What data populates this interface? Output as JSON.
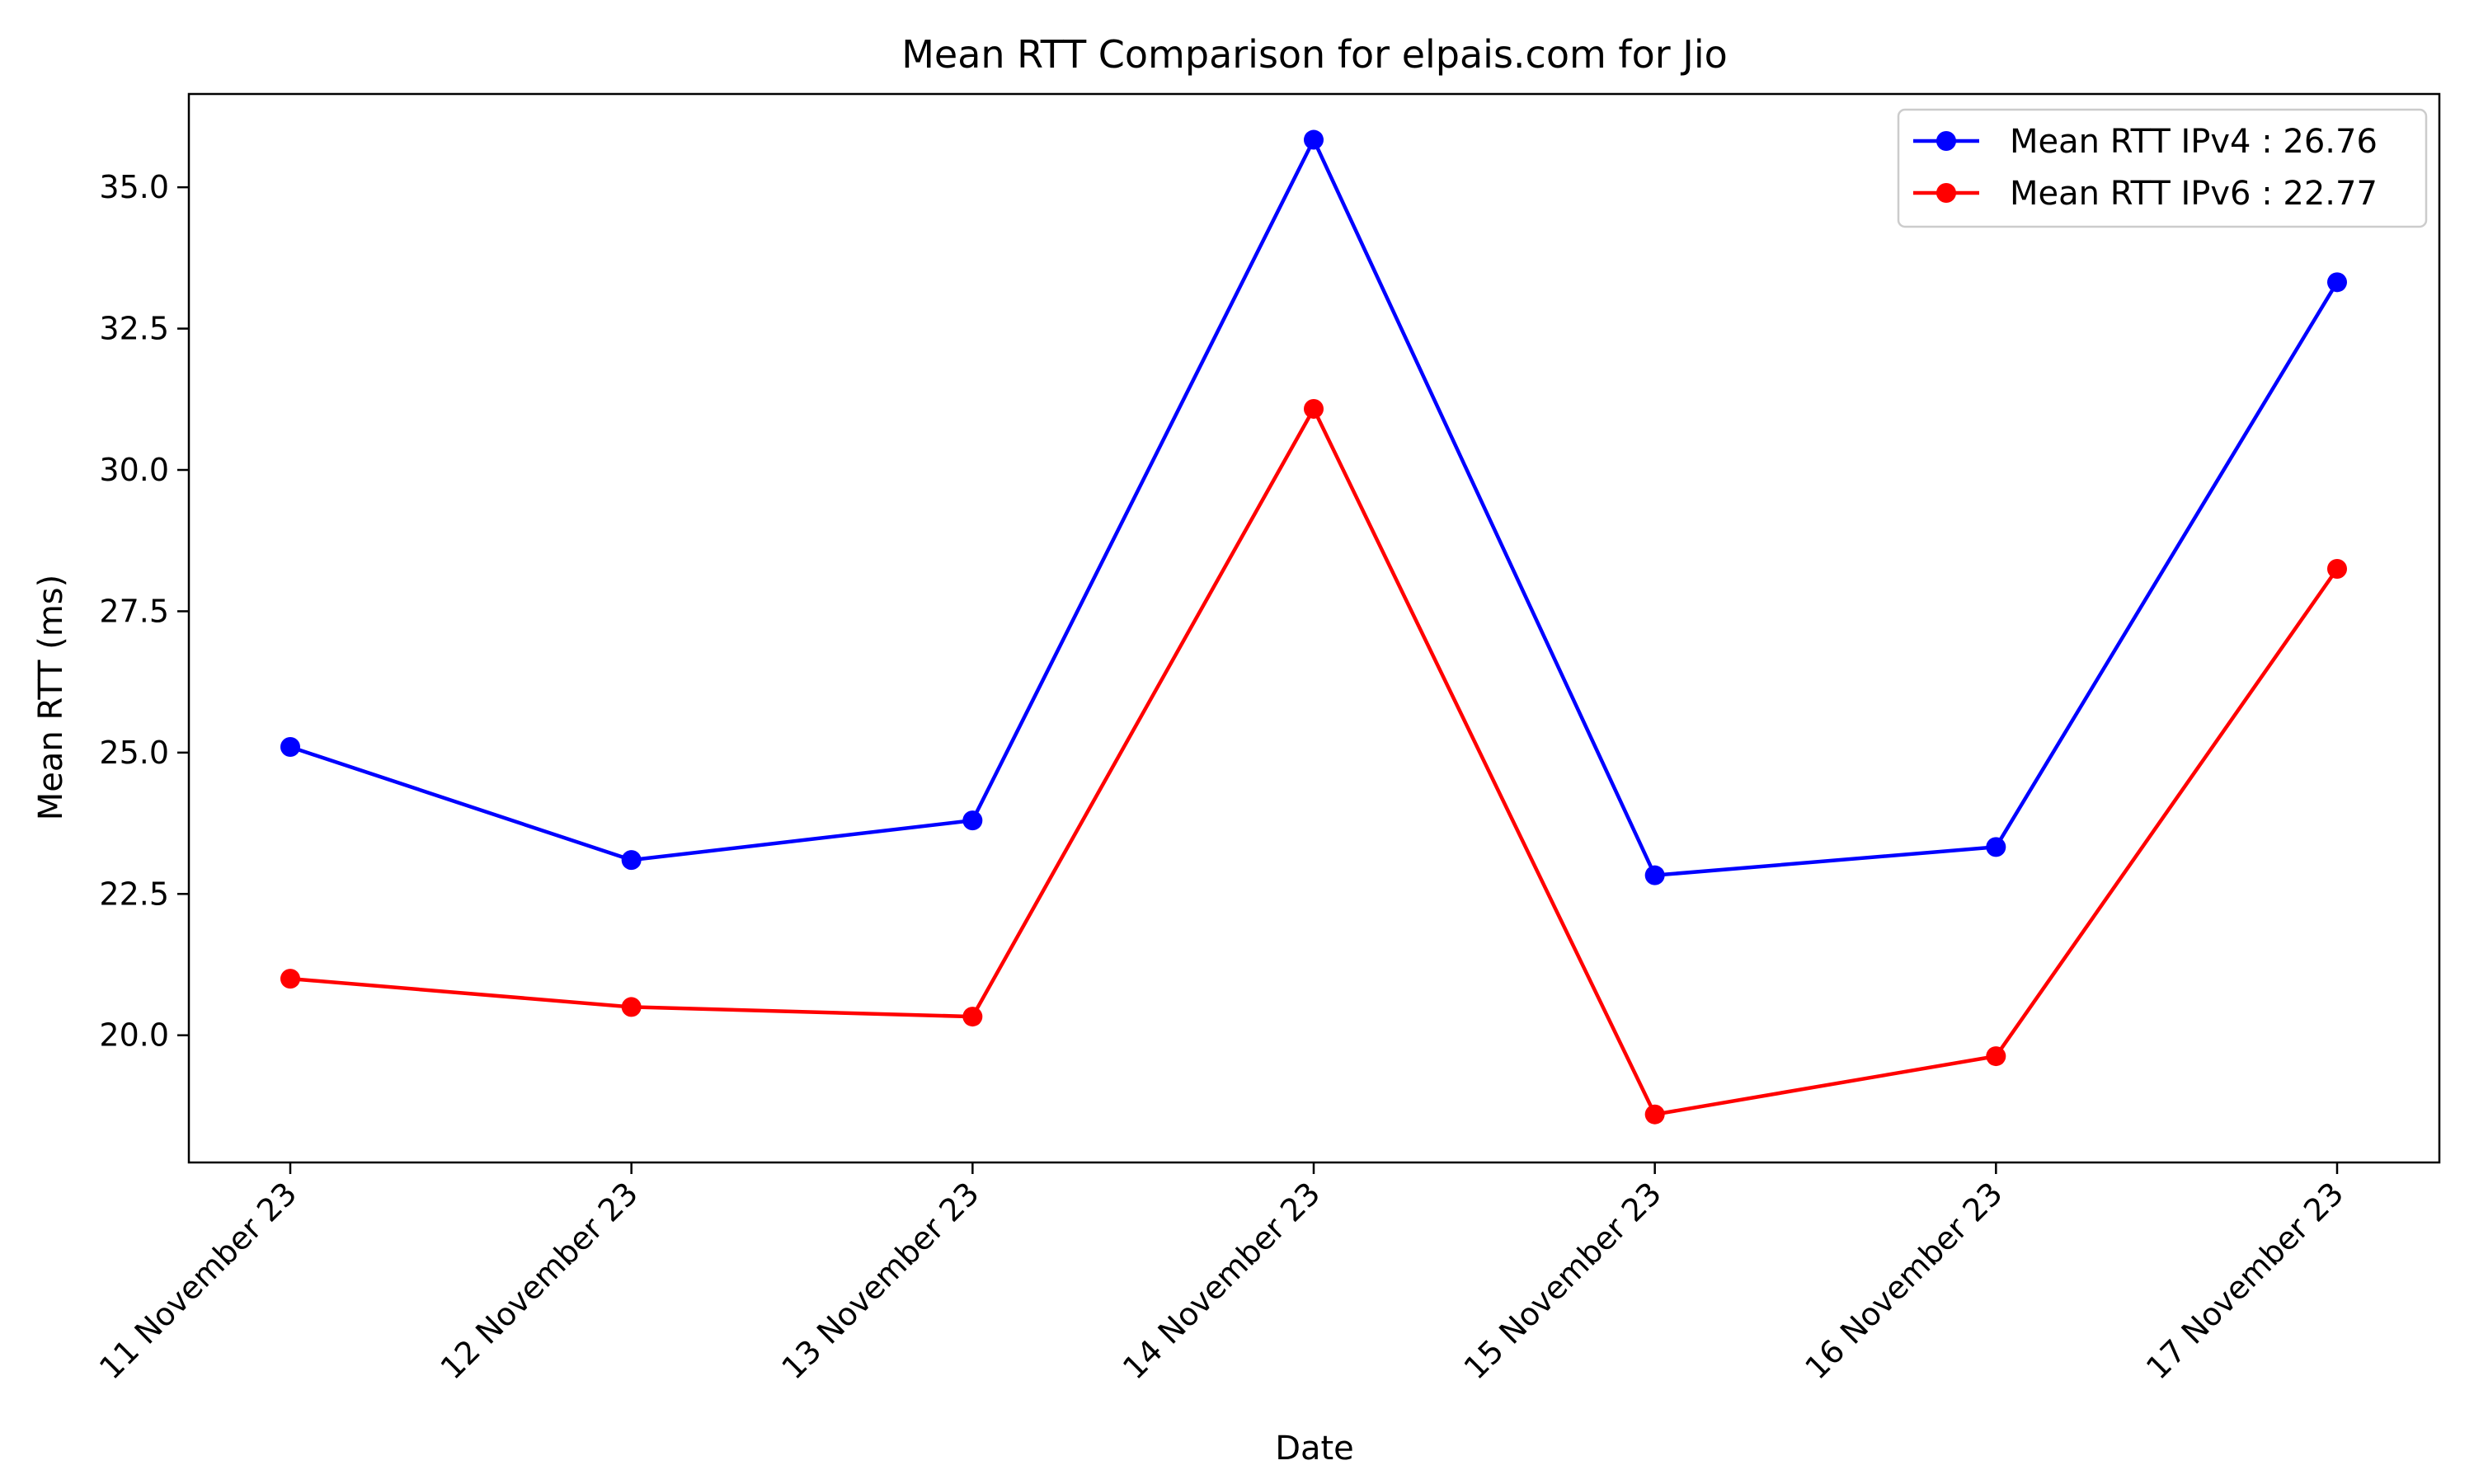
{
  "chart_data": {
    "type": "line",
    "title": "Mean RTT Comparison for elpais.com for Jio",
    "xlabel": "Date",
    "ylabel": "Mean RTT (ms)",
    "categories": [
      "11 November 23",
      "12 November 23",
      "13 November 23",
      "14 November 23",
      "15 November 23",
      "16 November 23",
      "17 November 23"
    ],
    "y_ticks": [
      "20.0",
      "22.5",
      "25.0",
      "27.5",
      "30.0",
      "32.5",
      "35.0"
    ],
    "ylim": [
      17.75,
      36.65
    ],
    "grid": false,
    "legend_position": "top-right",
    "series": [
      {
        "name": "Mean RTT IPv4 : 26.76",
        "color": "#0000ff",
        "values": [
          25.1,
          23.1,
          23.8,
          35.84,
          22.83,
          23.33,
          33.32
        ]
      },
      {
        "name": "Mean RTT IPv6 : 22.77",
        "color": "#ff0000",
        "values": [
          21.0,
          20.5,
          20.33,
          31.08,
          18.6,
          19.63,
          28.25
        ]
      }
    ]
  }
}
